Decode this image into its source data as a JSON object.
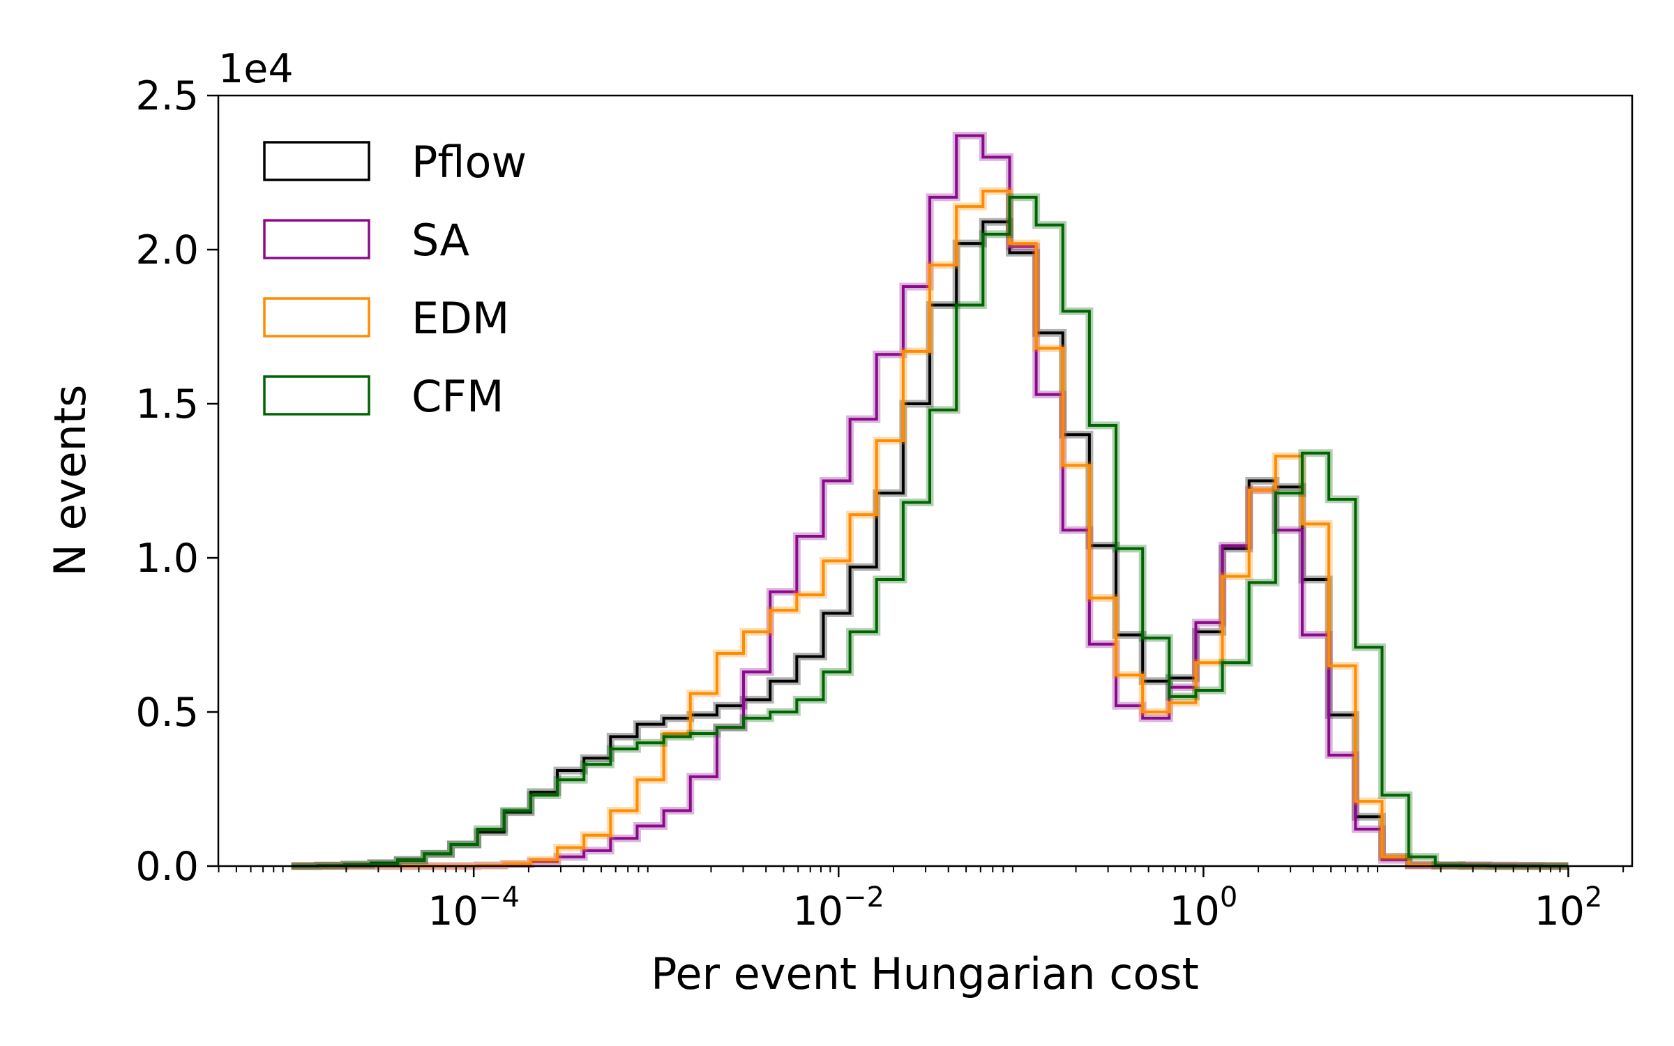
{
  "chart_data": {
    "type": "histogram",
    "xlabel": "Per event Hungarian cost",
    "ylabel": "N events",
    "y_offset_text": "1e4",
    "x_scale": "log",
    "xlim_log10": [
      -5.4,
      2.35
    ],
    "ylim": [
      0,
      25000
    ],
    "bin_edges_log10": {
      "start": -5.0,
      "stop": 2.0,
      "count": 49
    },
    "x_ticks": [
      {
        "base": "10",
        "exp": "−4",
        "log10": -4
      },
      {
        "base": "10",
        "exp": "−2",
        "log10": -2
      },
      {
        "base": "10",
        "exp": "0",
        "log10": 0
      },
      {
        "base": "10",
        "exp": "2",
        "log10": 2
      }
    ],
    "y_ticks": [
      {
        "label": "0.0",
        "value": 0
      },
      {
        "label": "0.5",
        "value": 5000
      },
      {
        "label": "1.0",
        "value": 10000
      },
      {
        "label": "1.5",
        "value": 15000
      },
      {
        "label": "2.0",
        "value": 20000
      },
      {
        "label": "2.5",
        "value": 25000
      }
    ],
    "legend_position": "upper-left",
    "series": [
      {
        "name": "Pflow",
        "color": "#000000",
        "values": [
          0,
          20,
          50,
          100,
          200,
          400,
          700,
          1100,
          1750,
          2400,
          3100,
          3500,
          4200,
          4600,
          4800,
          4900,
          5200,
          5400,
          6000,
          6800,
          8200,
          9700,
          12100,
          15000,
          18200,
          20200,
          20900,
          19900,
          17300,
          14000,
          10400,
          7500,
          6000,
          6100,
          7600,
          10300,
          12500,
          12300,
          9300,
          4900,
          1600,
          300,
          30,
          10,
          0,
          0,
          0,
          0
        ]
      },
      {
        "name": "SA",
        "color": "#8b0a8b",
        "values": [
          0,
          0,
          0,
          0,
          0,
          0,
          0,
          20,
          60,
          150,
          300,
          500,
          900,
          1300,
          1800,
          2900,
          4500,
          6300,
          8900,
          10700,
          12500,
          14500,
          16600,
          18800,
          21700,
          23700,
          23000,
          20100,
          15300,
          10900,
          7200,
          5200,
          4800,
          5800,
          7900,
          10400,
          12200,
          10900,
          7500,
          3600,
          1200,
          200,
          20,
          20,
          30,
          20,
          10,
          0
        ]
      },
      {
        "name": "EDM",
        "color": "#ff8c00",
        "values": [
          0,
          0,
          0,
          0,
          0,
          0,
          0,
          20,
          80,
          200,
          600,
          1000,
          1800,
          2800,
          4300,
          5600,
          6900,
          7600,
          8300,
          8800,
          9900,
          11400,
          13800,
          16700,
          19500,
          21400,
          21900,
          20200,
          16800,
          13000,
          8700,
          6200,
          5000,
          5300,
          6600,
          9400,
          12200,
          13300,
          11100,
          6500,
          2100,
          300,
          30,
          10,
          0,
          0,
          0,
          0
        ]
      },
      {
        "name": "CFM",
        "color": "#006400",
        "values": [
          0,
          10,
          40,
          80,
          180,
          400,
          700,
          1200,
          1800,
          2300,
          2800,
          3300,
          3800,
          4000,
          4200,
          4300,
          4500,
          4800,
          5000,
          5400,
          6300,
          7600,
          9300,
          11800,
          14800,
          18200,
          20500,
          21700,
          20800,
          18000,
          14300,
          10300,
          7400,
          5500,
          5700,
          6600,
          9200,
          12100,
          13400,
          11900,
          7100,
          2300,
          300,
          30,
          10,
          0,
          0,
          0
        ]
      }
    ]
  }
}
